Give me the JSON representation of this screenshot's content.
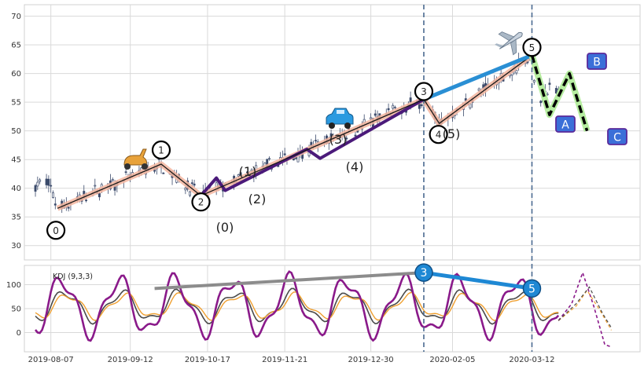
{
  "chart_data": [
    {
      "type": "line",
      "panel": "price",
      "title": "",
      "xlabel": "",
      "ylabel": "",
      "ylim": [
        27.5,
        72
      ],
      "yticks": [
        30,
        35,
        40,
        45,
        50,
        55,
        60,
        65,
        70
      ],
      "grid": true,
      "x_ticks": [
        "2019-08-07",
        "2019-09-12",
        "2019-10-17",
        "2019-11-21",
        "2019-12-30",
        "2020-02-05",
        "2020-03-12"
      ],
      "x_range_days": [
        -12,
        267
      ],
      "candles_summary": "daily candlesticks from 2019-08-01 to 2020-03-31",
      "wave_points": [
        {
          "label": "0",
          "date": "2019-08-10",
          "value": 36.5
        },
        {
          "label": "1",
          "date": "2019-09-26",
          "value": 44.2
        },
        {
          "label": "2",
          "date": "2019-10-14",
          "value": 38.7
        },
        {
          "label": "3",
          "date": "2020-01-23",
          "value": 55.5
        },
        {
          "label": "4",
          "date": "2020-01-30",
          "value": 51.3
        },
        {
          "label": "5",
          "date": "2020-03-12",
          "value": 63.2
        }
      ],
      "sub_wave_labels": [
        "(0)",
        "(1)",
        "(2)",
        "(3)",
        "(4)",
        "(5)"
      ],
      "correction_labels": [
        "A",
        "B",
        "C"
      ],
      "correction_points": [
        {
          "label": "A",
          "date": "2020-03-20",
          "value": 52.8
        },
        {
          "label": "B",
          "date": "2020-03-29",
          "value": 60.0
        },
        {
          "label": "C",
          "date": "2020-04-06",
          "value": 50.0
        }
      ],
      "trend_line": [
        {
          "date": "2020-01-23",
          "value": 55.5
        },
        {
          "date": "2020-03-12",
          "value": 63.2
        }
      ],
      "vertical_markers": [
        "2020-01-23",
        "2020-03-12"
      ],
      "icons": [
        "scooter-icon",
        "car-icon",
        "airplane-icon"
      ],
      "colors": {
        "candles": "#3b4a6b",
        "wave_band": "#f4b6a0",
        "wave_line": "#1a1a1a",
        "subwave": "#4b1a7a",
        "trend": "#2a8fd4",
        "correction_band": "#b6eda0",
        "correction_box": "#3b6fd8",
        "marker": "#4a6a90"
      }
    },
    {
      "type": "line",
      "panel": "kdj",
      "legend_label": "KDJ (9,3,3)",
      "ylim": [
        -40,
        140
      ],
      "yticks": [
        0,
        50,
        100
      ],
      "grid": true,
      "markers": [
        {
          "label": "3",
          "date": "2020-01-23",
          "value": 125
        },
        {
          "label": "5",
          "date": "2020-03-12",
          "value": 92
        }
      ],
      "gray_line": [
        {
          "date": "2019-09-23",
          "value": 92
        },
        {
          "date": "2020-01-23",
          "value": 125
        }
      ],
      "colors": {
        "K": "#4a4a4a",
        "D": "#f0a030",
        "J": "#8a1a8a",
        "marker": "#1e88d4",
        "gray": "#8c8c8c"
      }
    }
  ]
}
